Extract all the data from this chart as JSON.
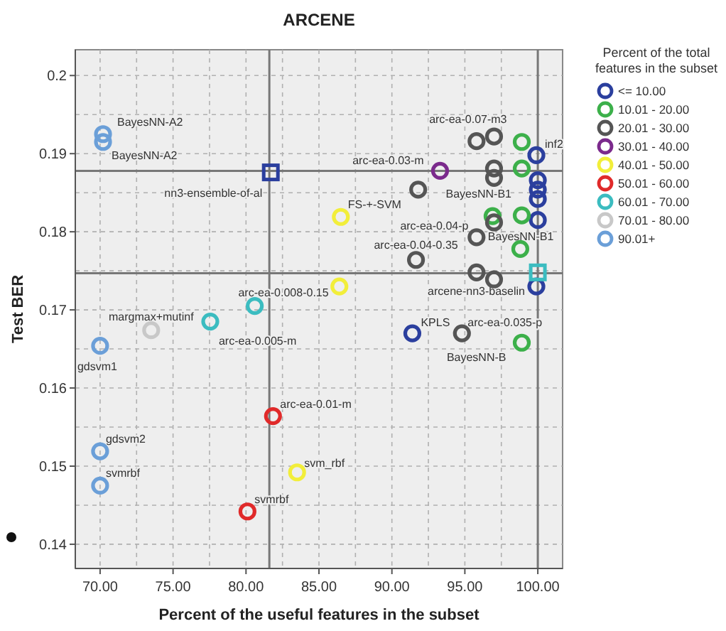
{
  "chart_data": {
    "type": "scatter",
    "title": "ARCENE",
    "xlabel": "Percent of the useful features in the subset",
    "ylabel": "Test BER",
    "legend_title": "Percent of the total features in the subset",
    "legend": "right",
    "marker": "circle",
    "grid": true,
    "xlim": [
      68.3,
      101.7
    ],
    "ylim": [
      0.1369,
      0.2033
    ],
    "xticks": [
      {
        "value": 70,
        "label": "70.00"
      },
      {
        "value": 72.5,
        "label": null
      },
      {
        "value": 75,
        "label": "75.00"
      },
      {
        "value": 77.5,
        "label": null
      },
      {
        "value": 80,
        "label": "80.00"
      },
      {
        "value": 82.5,
        "label": null
      },
      {
        "value": 85,
        "label": "85.00"
      },
      {
        "value": 87.5,
        "label": null
      },
      {
        "value": 90,
        "label": "90.00"
      },
      {
        "value": 92.5,
        "label": null
      },
      {
        "value": 95,
        "label": "95.00"
      },
      {
        "value": 97.5,
        "label": null
      },
      {
        "value": 100,
        "label": "100.00"
      }
    ],
    "yticks": [
      0.14,
      {
        "value": 0.145,
        "label": null
      },
      0.15,
      {
        "value": 0.155,
        "label": null
      },
      0.16,
      {
        "value": 0.165,
        "label": null
      },
      0.17,
      {
        "value": 0.175,
        "label": null
      },
      0.18,
      {
        "value": 0.185,
        "label": null
      },
      0.19,
      {
        "value": 0.195,
        "label": null
      },
      0.2
    ],
    "ref_lines": [
      {
        "axis": "x",
        "value": 81.6,
        "color": "#777777"
      },
      {
        "axis": "x",
        "value": 100,
        "color": "#777777"
      },
      {
        "axis": "y",
        "value": 0.1878,
        "color": "#777777"
      },
      {
        "axis": "y",
        "value": 0.1747,
        "color": "#777777"
      }
    ],
    "series": [
      {
        "name": "<= 10.00",
        "color": "#2b3f9e",
        "x": [
          99.9,
          100,
          100,
          100,
          100,
          99.9,
          91.4
        ],
        "values": [
          0.1898,
          0.1866,
          0.1854,
          0.1842,
          0.1815,
          0.173,
          0.167
        ]
      },
      {
        "name": "10.01 - 20.00",
        "color": "#3cb04a",
        "x": [
          98.9,
          98.9,
          96.9,
          98.9,
          98.8,
          98.9
        ],
        "values": [
          0.1915,
          0.1881,
          0.182,
          0.1821,
          0.1778,
          0.1658
        ]
      },
      {
        "name": "20.01 - 30.00",
        "color": "#555555",
        "x": [
          95.8,
          97.0,
          97.0,
          97.0,
          91.8,
          97.0,
          95.8,
          91.65,
          95.8,
          97.0,
          94.8
        ],
        "values": [
          0.1916,
          0.1922,
          0.1881,
          0.1869,
          0.1854,
          0.1812,
          0.1793,
          0.1764,
          0.1748,
          0.1739,
          0.167
        ]
      },
      {
        "name": "30.01 - 40.00",
        "color": "#7b2a8c",
        "x": [
          93.3
        ],
        "values": [
          0.1878
        ]
      },
      {
        "name": "40.01 - 50.00",
        "color": "#f2ee3a",
        "x": [
          86.5,
          86.4,
          83.5
        ],
        "values": [
          0.1819,
          0.173,
          0.1492
        ]
      },
      {
        "name": "50.01 - 60.00",
        "color": "#e02a2a",
        "x": [
          81.85,
          80.1
        ],
        "values": [
          0.1564,
          0.1442
        ]
      },
      {
        "name": "60.01 - 70.00",
        "color": "#3bbcc0",
        "x": [
          80.6,
          77.55
        ],
        "values": [
          0.1705,
          0.1685
        ]
      },
      {
        "name": "70.01 - 80.00",
        "color": "#c8c8c8",
        "x": [
          73.5
        ],
        "values": [
          0.1674
        ]
      },
      {
        "name": "90.01+",
        "color": "#6b9fd8",
        "x": [
          70.2,
          70.2,
          70.0,
          70.0,
          70.0
        ],
        "values": [
          0.1925,
          0.1915,
          0.1654,
          0.1519,
          0.1475
        ]
      },
      {
        "color": "#2b3f9e",
        "marker": "square",
        "x": [
          81.7
        ],
        "values": [
          0.1876
        ]
      },
      {
        "color": "#3bbcc0",
        "marker": "square",
        "x": [
          100
        ],
        "values": [
          0.1748
        ]
      }
    ],
    "annotations": [
      {
        "text": "BayesNN-A2",
        "x": 70.2,
        "y": 0.1925
      },
      {
        "text": "BayesNN-A2",
        "x": 70.2,
        "y": 0.1915
      },
      {
        "text": "nn3-ensemble-of-al",
        "x": 81.7,
        "y": 0.1876
      },
      {
        "text": "FS-+-SVM",
        "x": 86.5,
        "y": 0.1819
      },
      {
        "text": "arc-ea-0.03-m",
        "x": 91.8,
        "y": 0.1854
      },
      {
        "text": "arc-ea-0.07-m3",
        "x": 95.8,
        "y": 0.1916
      },
      {
        "text": "inf2",
        "x": 99.9,
        "y": 0.1898
      },
      {
        "text": "BayesNN-B1",
        "x": 93.3,
        "y": 0.1878
      },
      {
        "text": "BayesNN-B1",
        "x": 95.8,
        "y": 0.1793
      },
      {
        "text": "arc-ea-0.04-p",
        "x": 97.0,
        "y": 0.1812
      },
      {
        "text": "arc-ea-0.04-0.35",
        "x": 91.65,
        "y": 0.1764
      },
      {
        "text": "arcene-nn3-baselin",
        "x": 99.9,
        "y": 0.173
      },
      {
        "text": "KPLS",
        "x": 91.4,
        "y": 0.167
      },
      {
        "text": "arc-ea-0.035-p",
        "x": 94.8,
        "y": 0.167
      },
      {
        "text": "BayesNN-B",
        "x": 98.9,
        "y": 0.1658
      },
      {
        "text": "arc-ea-0.008-0.15",
        "x": 80.6,
        "y": 0.1705
      },
      {
        "text": "margmax+mutinf",
        "x": 73.5,
        "y": 0.1674
      },
      {
        "text": "arc-ea-0.005-m",
        "x": 77.55,
        "y": 0.1685
      },
      {
        "text": "gdsvm1",
        "x": 70.0,
        "y": 0.1654
      },
      {
        "text": "gdsvm2",
        "x": 70.0,
        "y": 0.1519
      },
      {
        "text": "svmrbf",
        "x": 70.0,
        "y": 0.1475
      },
      {
        "text": "arc-ea-0.01-m",
        "x": 81.85,
        "y": 0.1564
      },
      {
        "text": "svm_rbf",
        "x": 83.5,
        "y": 0.1492
      },
      {
        "text": "svmrbf",
        "x": 80.1,
        "y": 0.1442
      }
    ]
  }
}
